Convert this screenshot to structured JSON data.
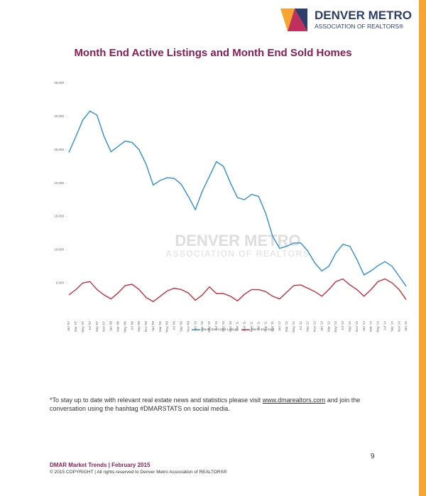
{
  "header": {
    "logo_line1": "DENVER METRO",
    "logo_line2": "ASSOCIATION OF REALTORS®"
  },
  "chart_data": {
    "type": "line",
    "title": "Month End Active Listings and Month End Sold Homes",
    "categories": [
      "Jan '07",
      "Mar '07",
      "May '07",
      "Jul '07",
      "Sep '07",
      "Nov '07",
      "Jan '08",
      "Mar '08",
      "May '08",
      "Jul '08",
      "Sep '08",
      "Nov '08",
      "Jan '09",
      "Mar '09",
      "May '09",
      "Jul '09",
      "Sep '09",
      "Nov '09",
      "Jan '10",
      "Mar '10",
      "May '10",
      "Jul '10",
      "Sep '10",
      "Nov '10",
      "Jan '11",
      "Mar '11",
      "May '11",
      "Jul '11",
      "Sep '11",
      "Nov '11",
      "Jan '12",
      "Mar '12",
      "May '12",
      "Jul '12",
      "Sep '12",
      "Nov '12",
      "Jan '13",
      "Mar '13",
      "May '13",
      "Jul '13",
      "Sep '13",
      "Nov '13",
      "Jan '14",
      "Mar '14",
      "May '14",
      "Jul '14",
      "Sep '14",
      "Nov '14",
      "Jan '15"
    ],
    "series": [
      {
        "name": "Month End Active Listings",
        "color": "#2e8fcf",
        "values": [
          24600,
          27000,
          29500,
          30800,
          30200,
          27000,
          24700,
          25500,
          26300,
          26100,
          25000,
          22800,
          19700,
          20400,
          20800,
          20700,
          19800,
          18000,
          16000,
          18800,
          21000,
          23200,
          22500,
          20000,
          17800,
          17500,
          18300,
          18000,
          15500,
          12000,
          10200,
          10500,
          11000,
          11000,
          9800,
          8000,
          6800,
          7500,
          9500,
          10800,
          10500,
          8500,
          6200,
          6800,
          7600,
          8200,
          7500,
          6000,
          4500
        ]
      },
      {
        "name": "Month End Sold",
        "color": "#c0303f",
        "values": [
          3200,
          4000,
          5000,
          5200,
          4000,
          3200,
          2600,
          3500,
          4600,
          4800,
          4000,
          2800,
          2200,
          3000,
          3800,
          4200,
          4000,
          3500,
          2400,
          3200,
          4400,
          3400,
          3400,
          3000,
          2300,
          3300,
          4000,
          4000,
          3700,
          3000,
          2600,
          3600,
          4600,
          4700,
          4200,
          3700,
          3000,
          4000,
          5200,
          5600,
          4700,
          4000,
          3000,
          4000,
          5200,
          5600,
          5000,
          4000,
          2500
        ]
      }
    ],
    "ylim": [
      0,
      35000
    ],
    "yticks": [
      {
        "value": 5000,
        "label": "5,000"
      },
      {
        "value": 10000,
        "label": "10,000"
      },
      {
        "value": 15000,
        "label": "15,000"
      },
      {
        "value": 20000,
        "label": "20,000"
      },
      {
        "value": 25000,
        "label": "25,000"
      },
      {
        "value": 30000,
        "label": "30,000"
      },
      {
        "value": 35000,
        "label": "35,000"
      }
    ],
    "grid": false,
    "legend": "bottom"
  },
  "watermark": {
    "line1": "DENVER METRO",
    "line2": "ASSOCIATION OF REALTORS"
  },
  "note": {
    "before": "*To stay up to date with relevant real estate news and statistics please visit ",
    "link": "www.dmarealtors.com",
    "after": " and join the conversation using the hashtag #DMARSTATS on social media."
  },
  "page_number": "9",
  "footer": {
    "title": "DMAR Market Trends | February 2015",
    "copyright": "© 2015 COPYRIGHT | All rights reserved to Denver Metro Association of REALTORS®"
  }
}
